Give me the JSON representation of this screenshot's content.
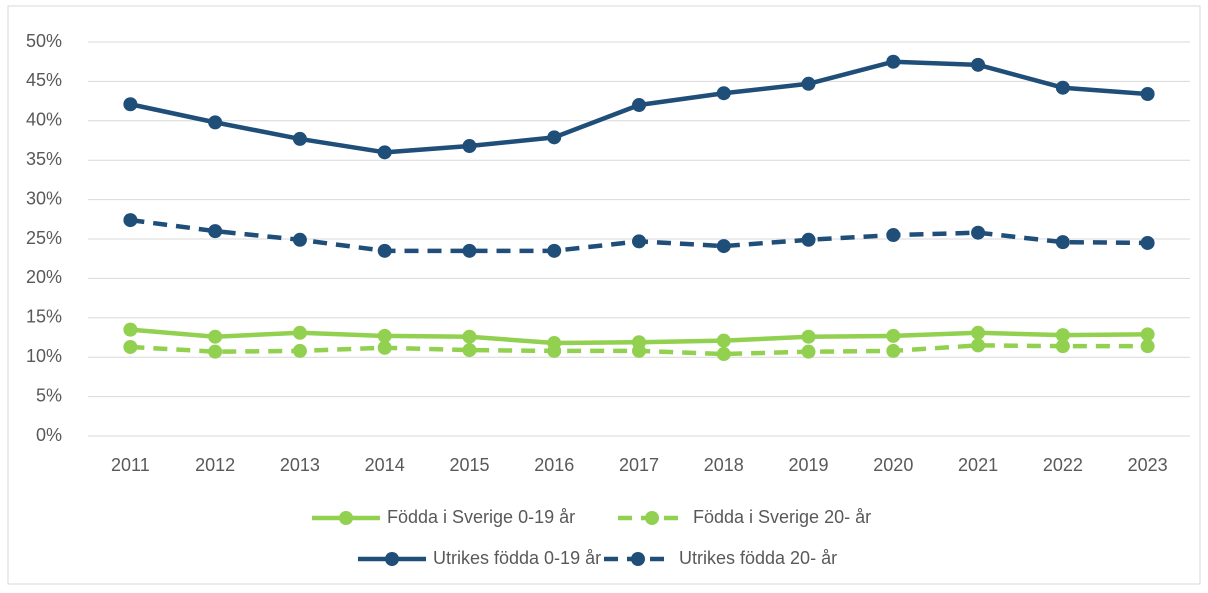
{
  "chart_data": {
    "type": "line",
    "categories": [
      "2011",
      "2012",
      "2013",
      "2014",
      "2015",
      "2016",
      "2017",
      "2018",
      "2019",
      "2020",
      "2021",
      "2022",
      "2023"
    ],
    "series": [
      {
        "name": "Födda i Sverige 0-19 år",
        "color": "#92d050",
        "dashed": false,
        "values": [
          13.5,
          12.6,
          13.1,
          12.7,
          12.6,
          11.8,
          11.9,
          12.1,
          12.6,
          12.7,
          13.1,
          12.8,
          12.9
        ]
      },
      {
        "name": "Födda i Sverige 20- år",
        "color": "#92d050",
        "dashed": true,
        "values": [
          11.3,
          10.7,
          10.8,
          11.2,
          10.9,
          10.8,
          10.8,
          10.4,
          10.7,
          10.8,
          11.5,
          11.4,
          11.4
        ]
      },
      {
        "name": "Utrikes födda 0-19 år",
        "color": "#1f4e79",
        "dashed": false,
        "values": [
          42.1,
          39.8,
          37.7,
          36.0,
          36.8,
          37.9,
          42.0,
          43.5,
          44.7,
          47.5,
          47.1,
          44.2,
          43.4
        ]
      },
      {
        "name": "Utrikes födda 20- år",
        "color": "#1f4e79",
        "dashed": true,
        "values": [
          27.4,
          26.0,
          24.9,
          23.5,
          23.5,
          23.5,
          24.7,
          24.1,
          24.9,
          25.5,
          25.8,
          24.6,
          24.5
        ]
      }
    ],
    "ylim": [
      0,
      50
    ],
    "yticks": [
      {
        "value": 0,
        "label": "0%"
      },
      {
        "value": 5,
        "label": "5%"
      },
      {
        "value": 10,
        "label": "10%"
      },
      {
        "value": 15,
        "label": "15%"
      },
      {
        "value": 20,
        "label": "20%"
      },
      {
        "value": 25,
        "label": "25%"
      },
      {
        "value": 30,
        "label": "30%"
      },
      {
        "value": 35,
        "label": "35%"
      },
      {
        "value": 40,
        "label": "40%"
      },
      {
        "value": 45,
        "label": "45%"
      },
      {
        "value": 50,
        "label": "50%"
      }
    ],
    "grid": true,
    "legend": "bottom"
  }
}
